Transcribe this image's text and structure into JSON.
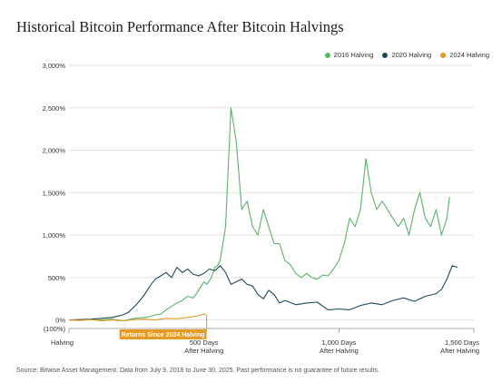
{
  "title": "Historical Bitcoin Performance After Bitcoin Halvings",
  "source": "Source: Bitwise Asset Management. Data from July 9, 2016 to June 30, 2025. Past performance is no guarantee of future results.",
  "annotation": "Returns Since 2024 Halving",
  "colors": {
    "2016 Halving": "#5bb26a",
    "2020 Halving": "#1e4a5a",
    "2024 Halving": "#e69a22",
    "grid": "#dddddd",
    "annotation_bg": "#e69a22"
  },
  "chart_data": {
    "type": "line",
    "title": "Historical Bitcoin Performance After Bitcoin Halvings",
    "xlabel": "",
    "ylabel": "",
    "xlim": [
      0,
      1500
    ],
    "ylim": [
      -100,
      3000
    ],
    "y_ticks": [
      {
        "value": 3000,
        "label": "3,000%"
      },
      {
        "value": 2500,
        "label": "2,500%"
      },
      {
        "value": 2000,
        "label": "2,000%"
      },
      {
        "value": 1500,
        "label": "1,500%"
      },
      {
        "value": 1000,
        "label": "1,000%"
      },
      {
        "value": 500,
        "label": "500%"
      },
      {
        "value": 0,
        "label": "0%"
      },
      {
        "value": -100,
        "label": "(100%)"
      }
    ],
    "x_ticks": [
      {
        "value": 0,
        "label": "Halving"
      },
      {
        "value": 500,
        "label": "500 Days After Halving",
        "line1": "500 Days",
        "line2": "After Halving"
      },
      {
        "value": 1000,
        "label": "1,000 Days After Halving",
        "line1": "1,000 Days",
        "line2": "After Halving"
      },
      {
        "value": 1500,
        "label": "1,500 Days After Halving",
        "line1": "1,500 Days",
        "line2": "After Halving"
      }
    ],
    "grid": true,
    "legend_position": "top-right",
    "series": [
      {
        "name": "2016 Halving",
        "x": [
          0,
          40,
          80,
          120,
          160,
          200,
          240,
          280,
          300,
          320,
          340,
          360,
          380,
          400,
          420,
          440,
          460,
          470,
          480,
          490,
          500,
          510,
          520,
          530,
          540,
          550,
          560,
          570,
          580,
          600,
          620,
          640,
          660,
          680,
          700,
          720,
          740,
          760,
          780,
          800,
          820,
          840,
          860,
          880,
          900,
          920,
          940,
          960,
          980,
          1000,
          1020,
          1040,
          1060,
          1080,
          1100,
          1120,
          1140,
          1160,
          1180,
          1200,
          1220,
          1240,
          1260,
          1280,
          1300,
          1320,
          1340,
          1360,
          1380,
          1400,
          1410
        ],
        "values": [
          0,
          -5,
          5,
          0,
          10,
          -10,
          20,
          30,
          40,
          60,
          70,
          120,
          160,
          200,
          230,
          280,
          260,
          300,
          350,
          400,
          450,
          420,
          460,
          520,
          620,
          640,
          700,
          900,
          1100,
          2500,
          2100,
          1300,
          1400,
          1100,
          1000,
          1300,
          1100,
          900,
          900,
          700,
          650,
          550,
          500,
          550,
          500,
          480,
          530,
          520,
          600,
          700,
          900,
          1200,
          1100,
          1300,
          1900,
          1500,
          1300,
          1400,
          1300,
          1200,
          1100,
          1200,
          1000,
          1300,
          1500,
          1200,
          1100,
          1300,
          1000,
          1200,
          1450
        ]
      },
      {
        "name": "2020 Halving",
        "x": [
          0,
          40,
          80,
          120,
          160,
          200,
          220,
          240,
          260,
          280,
          300,
          320,
          340,
          360,
          380,
          400,
          420,
          440,
          460,
          480,
          500,
          520,
          540,
          560,
          580,
          600,
          620,
          640,
          660,
          680,
          700,
          720,
          740,
          760,
          780,
          800,
          840,
          880,
          920,
          960,
          1000,
          1040,
          1080,
          1120,
          1160,
          1200,
          1240,
          1280,
          1320,
          1360,
          1380,
          1400,
          1420,
          1440
        ],
        "values": [
          0,
          5,
          10,
          20,
          30,
          60,
          90,
          150,
          220,
          300,
          400,
          480,
          520,
          560,
          500,
          620,
          560,
          600,
          540,
          520,
          550,
          600,
          580,
          640,
          560,
          420,
          450,
          480,
          420,
          400,
          300,
          250,
          350,
          300,
          200,
          230,
          180,
          200,
          210,
          120,
          130,
          120,
          170,
          200,
          180,
          230,
          260,
          220,
          280,
          310,
          360,
          480,
          640,
          620
        ]
      },
      {
        "name": "2024 Halving",
        "x": [
          0,
          40,
          80,
          120,
          160,
          200,
          240,
          280,
          320,
          360,
          400,
          440,
          480,
          500,
          510
        ],
        "values": [
          0,
          -5,
          5,
          -10,
          0,
          -10,
          5,
          10,
          0,
          20,
          15,
          30,
          50,
          70,
          60
        ]
      }
    ]
  }
}
